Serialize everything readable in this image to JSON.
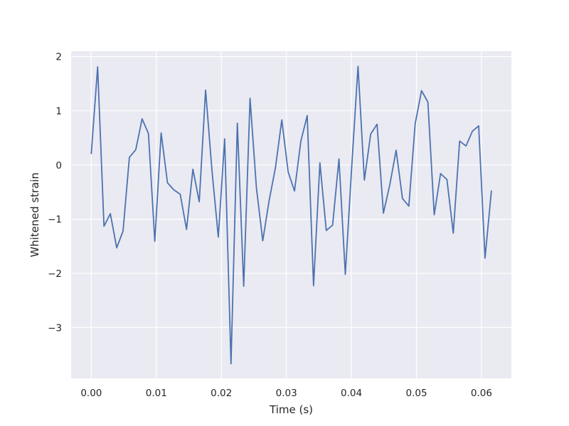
{
  "chart_data": {
    "type": "line",
    "title": "",
    "xlabel": "Time (s)",
    "ylabel": "Whitened strain",
    "xlim": [
      -0.0031,
      0.0646
    ],
    "ylim": [
      -3.94,
      2.1
    ],
    "xticks": [
      0.0,
      0.01,
      0.02,
      0.03,
      0.04,
      0.05,
      0.06
    ],
    "xtick_labels": [
      "0.00",
      "0.01",
      "0.02",
      "0.03",
      "0.04",
      "0.05",
      "0.06"
    ],
    "yticks": [
      -3,
      -2,
      -1,
      0,
      1,
      2
    ],
    "ytick_labels": [
      "−3",
      "−2",
      "−1",
      "0",
      "1",
      "2"
    ],
    "grid": true,
    "colors": {
      "background": "#eaeaf2",
      "grid": "#ffffff",
      "line": "#4c72b0",
      "text": "#262626"
    },
    "series": [
      {
        "x": [
          0.0,
          0.000977,
          0.001953,
          0.00293,
          0.003906,
          0.004883,
          0.005859,
          0.006836,
          0.007813,
          0.008789,
          0.009766,
          0.010742,
          0.011719,
          0.012695,
          0.013672,
          0.014648,
          0.015625,
          0.016602,
          0.017578,
          0.018555,
          0.019531,
          0.020508,
          0.021484,
          0.022461,
          0.023438,
          0.024414,
          0.025391,
          0.026367,
          0.027344,
          0.02832,
          0.029297,
          0.030273,
          0.03125,
          0.032227,
          0.033203,
          0.03418,
          0.035156,
          0.036133,
          0.037109,
          0.038086,
          0.039063,
          0.040039,
          0.041016,
          0.041992,
          0.042969,
          0.043945,
          0.044922,
          0.045898,
          0.046875,
          0.047852,
          0.048828,
          0.049805,
          0.050781,
          0.051758,
          0.052734,
          0.053711,
          0.054688,
          0.055664,
          0.056641,
          0.057617,
          0.058594,
          0.05957,
          0.060547,
          0.061523
        ],
        "values": [
          0.21,
          1.81,
          -1.13,
          -0.9,
          -1.53,
          -1.22,
          0.14,
          0.28,
          0.85,
          0.58,
          -1.41,
          0.59,
          -0.33,
          -0.46,
          -0.54,
          -1.19,
          -0.08,
          -0.68,
          1.38,
          -0.1,
          -1.33,
          0.48,
          -3.67,
          0.77,
          -2.24,
          1.23,
          -0.42,
          -1.4,
          -0.66,
          -0.05,
          0.83,
          -0.13,
          -0.48,
          0.44,
          0.91,
          -2.23,
          0.04,
          -1.21,
          -1.11,
          0.11,
          -2.02,
          -0.05,
          1.82,
          -0.28,
          0.57,
          0.75,
          -0.89,
          -0.37,
          0.27,
          -0.62,
          -0.76,
          0.76,
          1.37,
          1.16,
          -0.92,
          -0.16,
          -0.27,
          -1.26,
          0.44,
          0.35,
          0.62,
          0.72,
          -1.72,
          -0.48
        ]
      }
    ]
  }
}
